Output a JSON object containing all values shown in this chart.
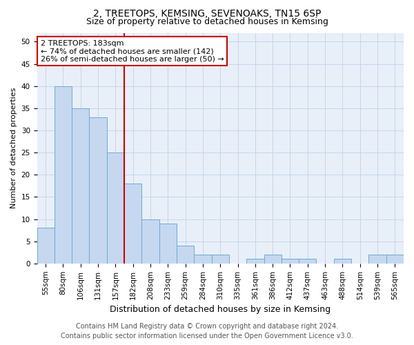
{
  "title": "2, TREETOPS, KEMSING, SEVENOAKS, TN15 6SP",
  "subtitle": "Size of property relative to detached houses in Kemsing",
  "xlabel": "Distribution of detached houses by size in Kemsing",
  "ylabel": "Number of detached properties",
  "categories": [
    "55sqm",
    "80sqm",
    "106sqm",
    "131sqm",
    "157sqm",
    "182sqm",
    "208sqm",
    "233sqm",
    "259sqm",
    "284sqm",
    "310sqm",
    "335sqm",
    "361sqm",
    "386sqm",
    "412sqm",
    "437sqm",
    "463sqm",
    "488sqm",
    "514sqm",
    "539sqm",
    "565sqm"
  ],
  "values": [
    8,
    40,
    35,
    33,
    25,
    18,
    10,
    9,
    4,
    2,
    2,
    0,
    1,
    2,
    1,
    1,
    0,
    1,
    0,
    2,
    2
  ],
  "bar_color": "#c5d8f0",
  "bar_edge_color": "#6aaad4",
  "vline_color": "#cc0000",
  "vline_x": 4.5,
  "annotation_text": "2 TREETOPS: 183sqm\n← 74% of detached houses are smaller (142)\n26% of semi-detached houses are larger (50) →",
  "annotation_box_color": "white",
  "annotation_box_edge_color": "#cc0000",
  "ylim": [
    0,
    52
  ],
  "yticks": [
    0,
    5,
    10,
    15,
    20,
    25,
    30,
    35,
    40,
    45,
    50
  ],
  "title_fontsize": 10,
  "subtitle_fontsize": 9,
  "xlabel_fontsize": 9,
  "ylabel_fontsize": 8,
  "tick_fontsize": 7.5,
  "annotation_fontsize": 8,
  "footer_fontsize": 7,
  "grid_color": "#c8d4e8",
  "background_color": "#e8eff8",
  "footer_line1": "Contains HM Land Registry data © Crown copyright and database right 2024.",
  "footer_line2": "Contains public sector information licensed under the Open Government Licence v3.0."
}
